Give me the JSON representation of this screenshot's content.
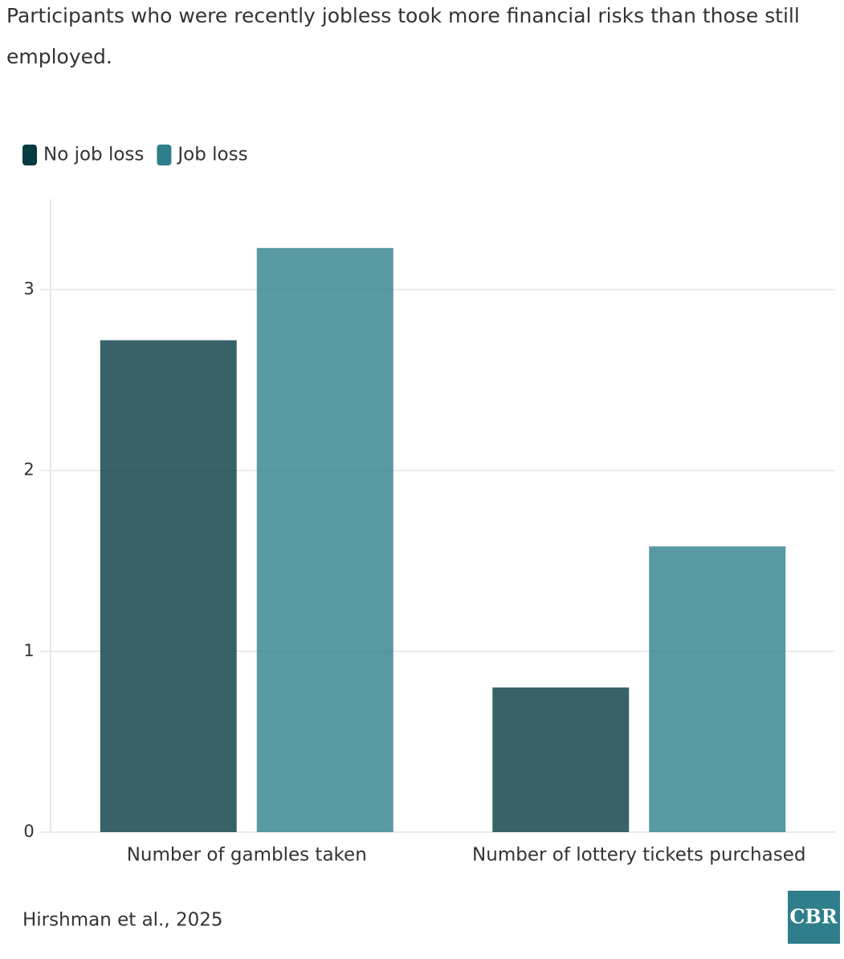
{
  "chart_data": {
    "type": "bar",
    "title": "Participants who were recently jobless took more financial risks than those still employed.",
    "categories": [
      "Number of gambles taken",
      "Number of lottery tickets purchased"
    ],
    "series": [
      {
        "name": "No job loss",
        "color": "#073b42",
        "values": [
          2.72,
          0.8
        ]
      },
      {
        "name": "Job loss",
        "color": "#2e7f8b",
        "values": [
          3.23,
          1.58
        ]
      }
    ],
    "ylim": [
      0,
      3.5
    ],
    "yticks": [
      0,
      1,
      2,
      3
    ],
    "grid": true,
    "source": "Hirshman et al., 2025",
    "logo": "CBR"
  }
}
